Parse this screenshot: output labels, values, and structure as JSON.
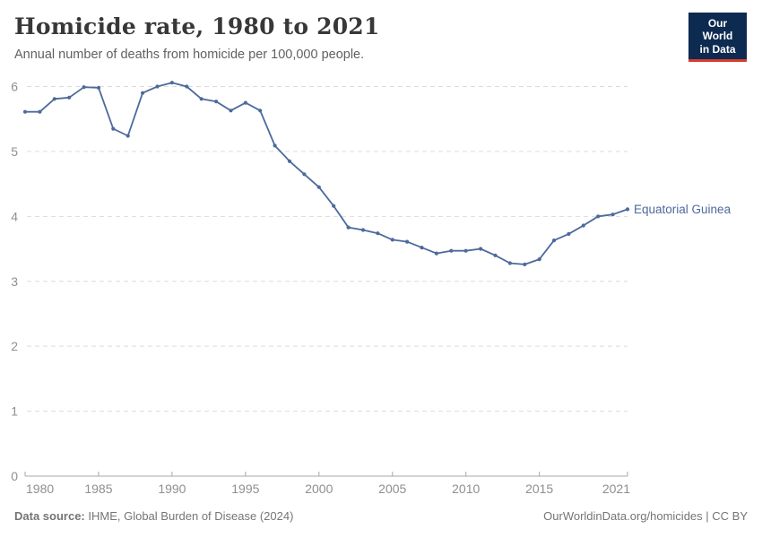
{
  "header": {
    "title": "Homicide rate, 1980 to 2021",
    "subtitle": "Annual number of deaths from homicide per 100,000 people."
  },
  "logo": {
    "line1": "Our World",
    "line2": "in Data",
    "bg_color": "#0d2a50",
    "bar_color": "#d73c2e"
  },
  "chart_data": {
    "type": "line",
    "title": "Homicide rate, 1980 to 2021",
    "xlabel": "",
    "ylabel": "Annual deaths from homicide per 100,000 people",
    "x": [
      1980,
      1981,
      1982,
      1983,
      1984,
      1985,
      1986,
      1987,
      1988,
      1989,
      1990,
      1991,
      1992,
      1993,
      1994,
      1995,
      1996,
      1997,
      1998,
      1999,
      2000,
      2001,
      2002,
      2003,
      2004,
      2005,
      2006,
      2007,
      2008,
      2009,
      2010,
      2011,
      2012,
      2013,
      2014,
      2015,
      2016,
      2017,
      2018,
      2019,
      2020,
      2021
    ],
    "series": [
      {
        "name": "Equatorial Guinea",
        "color": "#4c6a9c",
        "values": [
          5.61,
          5.61,
          5.81,
          5.83,
          5.99,
          5.98,
          5.35,
          5.24,
          5.9,
          6.0,
          6.06,
          6.0,
          5.81,
          5.77,
          5.63,
          5.75,
          5.63,
          5.09,
          4.85,
          4.65,
          4.45,
          4.16,
          3.83,
          3.79,
          3.74,
          3.64,
          3.61,
          3.52,
          3.43,
          3.47,
          3.47,
          3.5,
          3.4,
          3.28,
          3.26,
          3.34,
          3.63,
          3.73,
          3.86,
          4.0,
          4.03,
          4.11
        ]
      }
    ],
    "ylim": [
      0,
      6
    ],
    "yticks": [
      0,
      1,
      2,
      3,
      4,
      5,
      6
    ],
    "xticks": [
      1980,
      1985,
      1990,
      1995,
      2000,
      2005,
      2010,
      2015,
      2021
    ],
    "grid": "horizontal-dashed",
    "grid_color": "#dcdcdc",
    "axis_color": "#a7a7a7",
    "tick_label_color": "#8f8f8f",
    "legend_position": "end-of-line-label"
  },
  "footer": {
    "data_source_label": "Data source:",
    "data_source_value": "IHME, Global Burden of Disease (2024)",
    "credit": "OurWorldinData.org/homicides | CC BY"
  }
}
